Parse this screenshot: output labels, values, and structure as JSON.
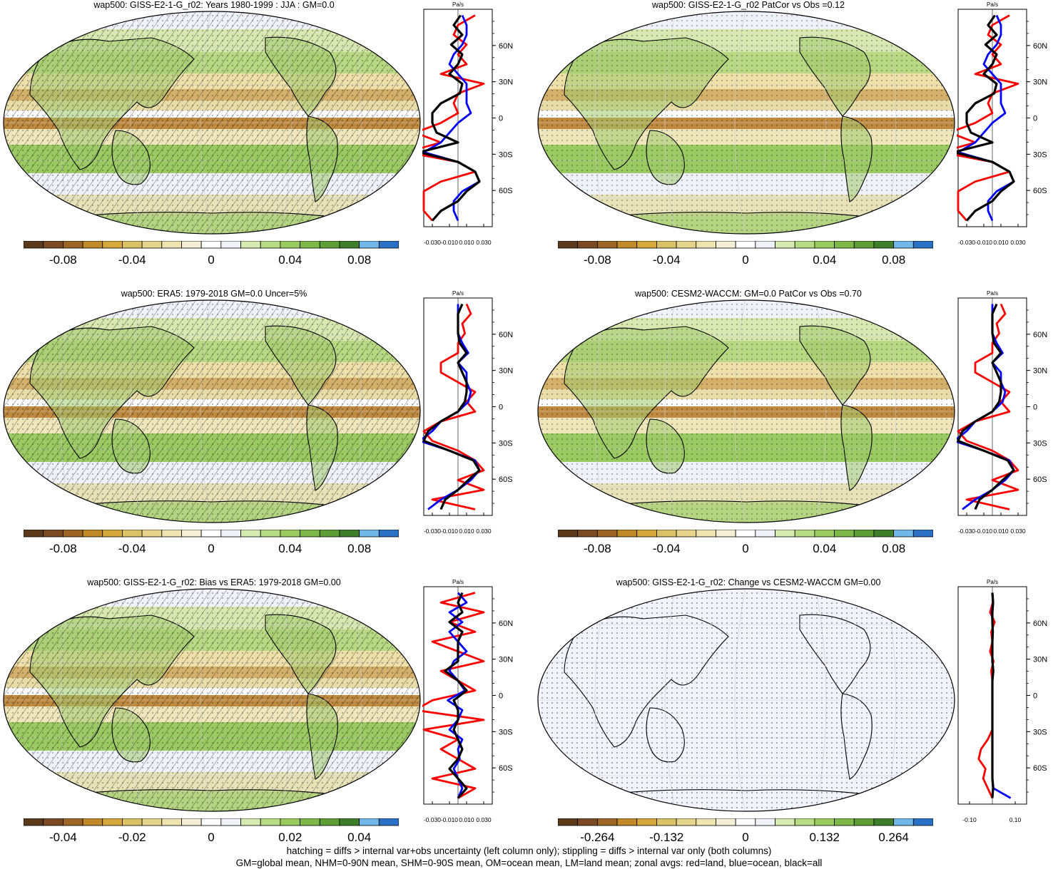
{
  "footer": {
    "line1": "hatching = diffs > internal var+obs uncertainty (left column only); stippling = diffs > internal var only (both columns)",
    "line2": "GM=global mean, NHM=0-90N mean, SHM=0-90S mean, OM=ocean mean, LM=land mean; zonal avgs: red=land, blue=ocean, black=all"
  },
  "colors": {
    "land": "#ff0000",
    "ocean": "#0000ff",
    "all": "#000000",
    "palette": [
      "#5a3a1a",
      "#7a4a22",
      "#9c6526",
      "#c08a2a",
      "#d4a83a",
      "#dcc266",
      "#e6d48c",
      "#efe3b0",
      "#f5efd6",
      "#ffffff",
      "#f0f2fa",
      "#d6ebb0",
      "#b8dc84",
      "#9acb5e",
      "#7eb848",
      "#5e9e36",
      "#3e7e2a",
      "#6fb8e8",
      "#2a70c4"
    ]
  },
  "chart_data": [
    {
      "type": "heatmap",
      "title": "wap500: GISS-E2-1-G_r02: Years 1980-1999 : JJA : GM=0.0",
      "colorbar": {
        "ticks": [
          "-0.08",
          "-0.04",
          "0",
          "0.04",
          "0.08"
        ],
        "min": -0.1,
        "max": 0.1
      },
      "zonal": {
        "unit": "Pa/s",
        "xticks": [
          "-0.030",
          "-0.010",
          "0.010",
          "0.030"
        ],
        "xlim": [
          -0.04,
          0.04
        ],
        "lat_ticks": [
          "60N",
          "30N",
          "0",
          "30S",
          "60S"
        ],
        "series": [
          {
            "values": [
              0.005,
              0.01,
              0.01,
              0.005,
              -0.005,
              -0.01,
              0.0,
              0.01,
              0.01,
              0.01,
              0.015,
              0.0,
              -0.01,
              -0.02,
              -0.04,
              0.0,
              0.02,
              0.025,
              0.005,
              -0.005,
              -0.005,
              0.0
            ]
          },
          {
            "values": [
              0.02,
              0.0,
              -0.005,
              0.01,
              0.0,
              0.01,
              -0.02,
              0.03,
              0.0,
              -0.005,
              0.0,
              -0.02,
              -0.05,
              -0.02,
              -0.06,
              0.0,
              0.02,
              -0.02,
              -0.04,
              -0.04,
              -0.04,
              -0.03
            ]
          },
          {
            "values": [
              0.003,
              -0.005,
              0.005,
              -0.008,
              0.005,
              0.0,
              -0.01,
              0.005,
              0.002,
              -0.02,
              -0.03,
              -0.03,
              -0.025,
              0.0,
              -0.045,
              0.0,
              0.02,
              0.025,
              0.01,
              0.0,
              -0.02,
              -0.03
            ]
          }
        ]
      }
    },
    {
      "type": "heatmap",
      "title": "wap500: GISS-E2-1-G_r02 PatCor vs Obs =0.12",
      "colorbar": {
        "ticks": [
          "-0.08",
          "-0.04",
          "0",
          "0.04",
          "0.08"
        ],
        "min": -0.1,
        "max": 0.1
      },
      "zonal": {
        "unit": "Pa/s",
        "xticks": [
          "-0.030",
          "-0.010",
          "0.010",
          "0.030"
        ],
        "xlim": [
          -0.04,
          0.04
        ],
        "lat_ticks": [
          "60N",
          "30N",
          "0",
          "30S",
          "60S"
        ],
        "series": [
          {
            "values": [
              0.005,
              0.01,
              0.01,
              0.005,
              -0.005,
              -0.01,
              0.0,
              0.01,
              0.01,
              0.01,
              0.015,
              0.0,
              -0.01,
              -0.02,
              -0.04,
              0.0,
              0.02,
              0.025,
              0.005,
              -0.005,
              -0.005,
              0.0
            ]
          },
          {
            "values": [
              0.02,
              0.0,
              -0.005,
              0.01,
              0.0,
              0.01,
              -0.02,
              0.03,
              0.0,
              -0.005,
              0.0,
              -0.02,
              -0.05,
              -0.02,
              -0.06,
              0.0,
              0.02,
              -0.02,
              -0.04,
              -0.04,
              -0.04,
              -0.03
            ]
          },
          {
            "values": [
              0.003,
              -0.005,
              0.005,
              -0.008,
              0.005,
              0.0,
              -0.01,
              0.005,
              0.002,
              -0.02,
              -0.03,
              -0.03,
              -0.025,
              0.0,
              -0.045,
              0.0,
              0.02,
              0.025,
              0.01,
              0.0,
              -0.02,
              -0.03
            ]
          }
        ]
      }
    },
    {
      "type": "heatmap",
      "title": "wap500: ERA5: 1979-2018 GM=0.0 Uncer=5%",
      "colorbar": {
        "ticks": [
          "-0.08",
          "-0.04",
          "0",
          "0.04",
          "0.08"
        ],
        "min": -0.1,
        "max": 0.1
      },
      "zonal": {
        "unit": "Pa/s",
        "xticks": [
          "-0.030",
          "-0.010",
          "0.010",
          "0.030"
        ],
        "xlim": [
          -0.04,
          0.04
        ],
        "lat_ticks": [
          "60N",
          "30N",
          "0",
          "30S",
          "60S"
        ],
        "series": [
          {
            "values": [
              0.0,
              0.0,
              0.0,
              0.0,
              0.005,
              0.012,
              0.0,
              0.01,
              0.01,
              0.015,
              0.012,
              0.0,
              -0.02,
              -0.03,
              -0.045,
              -0.01,
              0.02,
              0.025,
              0.015,
              0.0,
              -0.02,
              -0.035
            ]
          },
          {
            "values": [
              0.01,
              0.015,
              0.005,
              0.008,
              0.0,
              0.0,
              -0.02,
              -0.02,
              0.0,
              0.02,
              0.01,
              0.02,
              -0.02,
              -0.04,
              -0.03,
              0.0,
              0.02,
              0.03,
              0.0,
              0.03,
              -0.03,
              0.02
            ]
          },
          {
            "values": [
              0.005,
              0.0,
              0.0,
              0.0,
              0.002,
              0.01,
              0.0,
              0.005,
              0.01,
              0.01,
              0.008,
              0.0,
              -0.02,
              -0.035,
              -0.04,
              -0.01,
              0.018,
              0.025,
              0.012,
              0.0,
              -0.015,
              -0.02
            ]
          }
        ]
      }
    },
    {
      "type": "heatmap",
      "title": "wap500: CESM2-WACCM: GM=0.0 PatCor vs Obs =0.70",
      "colorbar": {
        "ticks": [
          "-0.08",
          "-0.04",
          "0",
          "0.04",
          "0.08"
        ],
        "min": -0.1,
        "max": 0.1
      },
      "zonal": {
        "unit": "Pa/s",
        "xticks": [
          "-0.030",
          "-0.010",
          "0.010",
          "0.030"
        ],
        "xlim": [
          -0.04,
          0.04
        ],
        "lat_ticks": [
          "60N",
          "30N",
          "0",
          "30S",
          "60S"
        ],
        "series": [
          {
            "values": [
              0.0,
              0.0,
              0.0,
              0.0,
              0.005,
              0.012,
              0.0,
              0.01,
              0.01,
              0.015,
              0.012,
              0.0,
              -0.02,
              -0.03,
              -0.045,
              -0.01,
              0.02,
              0.025,
              0.015,
              0.0,
              -0.02,
              -0.035
            ]
          },
          {
            "values": [
              0.01,
              0.015,
              0.005,
              0.008,
              0.0,
              0.0,
              -0.02,
              -0.02,
              0.0,
              0.02,
              0.01,
              0.02,
              -0.02,
              -0.04,
              -0.03,
              0.0,
              0.02,
              0.03,
              0.0,
              0.03,
              -0.03,
              0.02
            ]
          },
          {
            "values": [
              0.005,
              0.0,
              0.0,
              0.0,
              0.002,
              0.01,
              0.0,
              0.005,
              0.01,
              0.01,
              0.008,
              0.0,
              -0.02,
              -0.035,
              -0.04,
              -0.01,
              0.018,
              0.025,
              0.012,
              0.0,
              -0.015,
              -0.02
            ]
          }
        ]
      }
    },
    {
      "type": "heatmap",
      "title": "wap500: GISS-E2-1-G_r02: Bias vs ERA5: 1979-2018 GM=0.00",
      "colorbar": {
        "ticks": [
          "-0.04",
          "-0.02",
          "0",
          "0.02",
          "0.04"
        ],
        "min": -0.05,
        "max": 0.05
      },
      "zonal": {
        "unit": "Pa/s",
        "xticks": [
          "-0.030",
          "-0.010",
          "0.010",
          "0.030"
        ],
        "xlim": [
          -0.04,
          0.04
        ],
        "lat_ticks": [
          "60N",
          "30N",
          "0",
          "30S",
          "60S"
        ],
        "series": [
          {
            "values": [
              0.0,
              0.01,
              -0.01,
              0.005,
              -0.01,
              0.0,
              0.01,
              -0.005,
              -0.01,
              0.0,
              0.008,
              -0.012,
              0.005,
              0.0,
              -0.01,
              0.005,
              0.0,
              0.002,
              -0.005,
              0.0,
              0.005,
              0.0
            ]
          },
          {
            "values": [
              0.02,
              -0.02,
              0.03,
              -0.01,
              0.02,
              -0.03,
              0.0,
              0.03,
              -0.02,
              0.0,
              0.02,
              -0.03,
              -0.05,
              0.03,
              -0.04,
              0.0,
              -0.02,
              0.0,
              0.02,
              -0.03,
              0.02,
              0.0
            ]
          },
          {
            "values": [
              0.005,
              0.0,
              0.005,
              -0.01,
              0.005,
              0.0,
              0.0,
              0.0,
              -0.015,
              0.0,
              0.01,
              -0.005,
              0.0,
              0.0,
              -0.005,
              0.0,
              0.005,
              0.0,
              -0.01,
              0.0,
              0.01,
              0.0
            ]
          }
        ]
      }
    },
    {
      "type": "heatmap",
      "title": "wap500: GISS-E2-1-G_r02: Change vs CESM2-WACCM GM=0.00",
      "colorbar": {
        "ticks": [
          "-0.264",
          "-0.132",
          "0",
          "0.132",
          "0.264"
        ],
        "min": -0.33,
        "max": 0.33
      },
      "zonal": {
        "unit": "Pa/s",
        "xticks": [
          "-0.10",
          "0.10"
        ],
        "xlim": [
          -0.15,
          0.15
        ],
        "lat_ticks": [
          "60N",
          "30N",
          "0",
          "30S",
          "60S"
        ],
        "series": [
          {
            "values": [
              0.0,
              0.003,
              -0.002,
              0.0,
              0.002,
              0.0,
              0.0,
              0.0,
              0.004,
              0.0,
              0.0,
              0.0,
              0.0,
              0.0,
              0.0,
              0.0,
              0.0,
              0.0,
              0.0,
              0.0,
              0.005,
              0.08
            ]
          },
          {
            "values": [
              0.0,
              0.002,
              -0.01,
              0.01,
              -0.005,
              0.0,
              -0.01,
              0.005,
              -0.005,
              0.0,
              0.0,
              0.0,
              0.0,
              0.0,
              0.0,
              -0.02,
              -0.05,
              -0.06,
              -0.03,
              -0.04,
              -0.02,
              0.0
            ]
          },
          {
            "values": [
              0.0,
              0.003,
              0.0,
              0.0,
              0.002,
              0.0,
              0.0,
              0.0,
              0.004,
              0.0,
              0.0,
              0.0,
              0.0,
              0.0,
              0.0,
              0.0,
              0.0,
              0.0,
              0.0,
              0.0,
              0.003,
              0.0
            ]
          }
        ]
      }
    }
  ]
}
